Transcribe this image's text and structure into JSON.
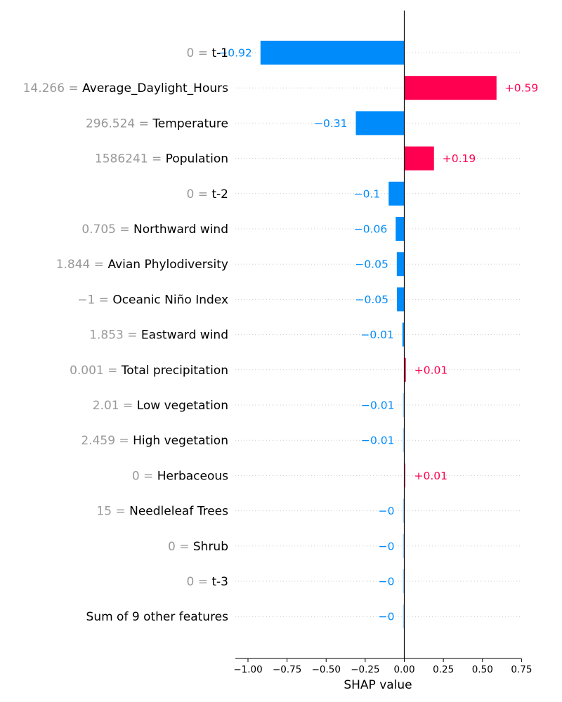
{
  "chart_data": {
    "type": "bar",
    "orientation": "horizontal",
    "title": "",
    "xlabel": "SHAP value",
    "ylabel": "",
    "xlim": [
      -1.08,
      0.75
    ],
    "xticks": [
      -1.0,
      -0.75,
      -0.5,
      -0.25,
      0.0,
      0.25,
      0.5,
      0.75
    ],
    "xtick_labels": [
      "−1.00",
      "−0.75",
      "−0.50",
      "−0.25",
      "0.00",
      "0.25",
      "0.50",
      "0.75"
    ],
    "grid": "dotted horizontal lines per row",
    "colors": {
      "positive": "#ff0051",
      "negative": "#008bfb",
      "zero_line": "#000000",
      "grid": "#cccccc",
      "feature_value_text": "#999999"
    },
    "features": [
      {
        "value": "0",
        "name": "t-1",
        "shap": -0.92,
        "label": "−0.92"
      },
      {
        "value": "14.266",
        "name": "Average_Daylight_Hours",
        "shap": 0.59,
        "label": "+0.59"
      },
      {
        "value": "296.524",
        "name": "Temperature",
        "shap": -0.31,
        "label": "−0.31"
      },
      {
        "value": "1586241",
        "name": "Population",
        "shap": 0.19,
        "label": "+0.19"
      },
      {
        "value": "0",
        "name": "t-2",
        "shap": -0.1,
        "label": "−0.1"
      },
      {
        "value": "0.705",
        "name": "Northward wind",
        "shap": -0.055,
        "label": "−0.06"
      },
      {
        "value": "1.844",
        "name": "Avian Phylodiversity",
        "shap": -0.048,
        "label": "−0.05"
      },
      {
        "value": "−1",
        "name": "Oceanic Niño Index",
        "shap": -0.047,
        "label": "−0.05"
      },
      {
        "value": "1.853",
        "name": "Eastward wind",
        "shap": -0.012,
        "label": "−0.01"
      },
      {
        "value": "0.001",
        "name": "Total precipitation",
        "shap": 0.01,
        "label": "+0.01"
      },
      {
        "value": "2.01",
        "name": "Low vegetation",
        "shap": -0.006,
        "label": "−0.01"
      },
      {
        "value": "2.459",
        "name": "High vegetation",
        "shap": -0.006,
        "label": "−0.01"
      },
      {
        "value": "0",
        "name": "Herbaceous",
        "shap": 0.005,
        "label": "+0.01"
      },
      {
        "value": "15",
        "name": "Needleleaf Trees",
        "shap": -0.002,
        "label": "−0"
      },
      {
        "value": "0",
        "name": "Shrub",
        "shap": -0.002,
        "label": "−0"
      },
      {
        "value": "0",
        "name": "t-3",
        "shap": -0.002,
        "label": "−0"
      },
      {
        "value": "",
        "name": "Sum of 9 other features",
        "shap": -0.002,
        "label": "−0"
      }
    ]
  }
}
